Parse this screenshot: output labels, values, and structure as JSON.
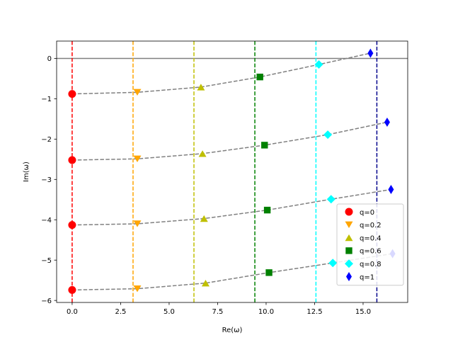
{
  "chart_data": {
    "type": "scatter",
    "title": "",
    "xlabel": "Re(ω)",
    "ylabel": "Im(ω)",
    "xlim": [
      -0.8,
      17.3
    ],
    "ylim": [
      -6.05,
      0.43
    ],
    "xticks": [
      0.0,
      2.5,
      5.0,
      7.5,
      10.0,
      12.5,
      15.0
    ],
    "xtick_labels": [
      "0.0",
      "2.5",
      "5.0",
      "7.5",
      "10.0",
      "12.5",
      "15.0"
    ],
    "yticks": [
      0,
      -1,
      -2,
      -3,
      -4,
      -5,
      -6
    ],
    "ytick_labels": [
      "0",
      "−1",
      "−2",
      "−3",
      "−4",
      "−5",
      "−6"
    ],
    "grid": false,
    "legend_position": "lower-right",
    "reference_line": {
      "y": 0,
      "color": "#808080"
    },
    "vertical_lines": [
      {
        "x": 0.0,
        "color": "#ff0000"
      },
      {
        "x": 3.14,
        "color": "#ffa500"
      },
      {
        "x": 6.28,
        "color": "#bfbf00"
      },
      {
        "x": 9.42,
        "color": "#008000"
      },
      {
        "x": 12.57,
        "color": "#00ffff"
      },
      {
        "x": 15.71,
        "color": "#00008b"
      }
    ],
    "series": [
      {
        "name": "q=0",
        "marker": "circle",
        "color": "#ff0000",
        "x": [
          0.0,
          0.0,
          0.0,
          0.0
        ],
        "y": [
          -0.88,
          -2.52,
          -4.13,
          -5.74
        ]
      },
      {
        "name": "q=0.2",
        "marker": "triangle-down",
        "color": "#ffa500",
        "x": [
          3.36,
          3.36,
          3.36,
          3.36
        ],
        "y": [
          -0.84,
          -2.49,
          -4.1,
          -5.71
        ]
      },
      {
        "name": "q=0.4",
        "marker": "triangle-up",
        "color": "#bfbf00",
        "x": [
          6.64,
          6.72,
          6.8,
          6.88
        ],
        "y": [
          -0.71,
          -2.36,
          -3.97,
          -5.57
        ]
      },
      {
        "name": "q=0.6",
        "marker": "square",
        "color": "#008000",
        "x": [
          9.68,
          9.92,
          10.06,
          10.15
        ],
        "y": [
          -0.46,
          -2.15,
          -3.76,
          -5.31
        ]
      },
      {
        "name": "q=0.8",
        "marker": "diamond",
        "color": "#00ffff",
        "x": [
          12.72,
          13.18,
          13.35,
          13.44
        ],
        "y": [
          -0.15,
          -1.89,
          -3.49,
          -5.07
        ]
      },
      {
        "name": "q=1",
        "marker": "thin-diamond",
        "color": "#0000ff",
        "x": [
          15.38,
          16.24,
          16.44,
          16.52
        ],
        "y": [
          0.13,
          -1.58,
          -3.25,
          -4.84
        ]
      }
    ],
    "fit_curves": [
      {
        "x": [
          0.0,
          3.36,
          6.64,
          9.68,
          12.72,
          15.38
        ],
        "y": [
          -0.88,
          -0.84,
          -0.71,
          -0.46,
          -0.15,
          0.13
        ]
      },
      {
        "x": [
          0.0,
          3.36,
          6.72,
          9.92,
          13.18,
          16.24
        ],
        "y": [
          -2.52,
          -2.49,
          -2.36,
          -2.15,
          -1.89,
          -1.58
        ]
      },
      {
        "x": [
          0.0,
          3.36,
          6.8,
          10.06,
          13.35,
          16.44
        ],
        "y": [
          -4.13,
          -4.1,
          -3.97,
          -3.76,
          -3.49,
          -3.25
        ]
      },
      {
        "x": [
          0.0,
          3.36,
          6.88,
          10.15,
          13.44,
          16.52
        ],
        "y": [
          -5.74,
          -5.71,
          -5.57,
          -5.31,
          -5.07,
          -4.84
        ]
      }
    ],
    "fit_color": "#808080"
  }
}
